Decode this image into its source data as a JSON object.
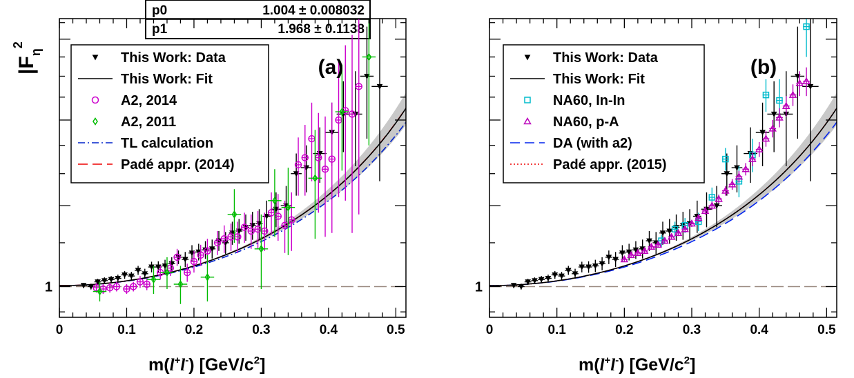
{
  "y_axis_label": {
    "main": "|F",
    "sub": "η",
    "sup": "2"
  },
  "fit_stats": [
    {
      "name": "p0",
      "value": "1.004",
      "pm": "±",
      "err": "0.008032"
    },
    {
      "name": "p1",
      "value": "1.968",
      "pm": "±",
      "err": "0.1138"
    }
  ],
  "x_axis_label": {
    "m": "m(",
    "l1": "l",
    "plus": "+",
    "l2": "l",
    "minus": "-",
    "rest": ")  [GeV/c",
    "two": "2",
    "close": "]"
  },
  "chart_data": [
    {
      "type": "scatter",
      "panel_label": "(a)",
      "xlim": [
        0,
        0.515
      ],
      "ylim": [
        0.88,
        3.05
      ],
      "yscale": "log",
      "xticks": [
        0,
        0.1,
        0.2,
        0.3,
        0.4,
        0.5
      ],
      "xtick_labels": [
        "0",
        "0.1",
        "0.2",
        "0.3",
        "0.4",
        "0.5"
      ],
      "ytick_labels": [
        {
          "value": 1,
          "label": "1"
        }
      ],
      "reference_line": 1,
      "legend_position": "top-left",
      "legend": [
        {
          "label": "This Work: Data",
          "style": "marker-triangle-down",
          "color": "#000000"
        },
        {
          "label": "This Work: Fit",
          "style": "solid",
          "color": "#000000"
        },
        {
          "label": "A2, 2014",
          "style": "marker-circle",
          "color": "#cc00cc"
        },
        {
          "label": "A2, 2011",
          "style": "marker-diamond",
          "color": "#00bb00"
        },
        {
          "label": "TL calculation",
          "style": "dashdot",
          "color": "#0022cc"
        },
        {
          "label": "Padé appr. (2014)",
          "style": "dashed",
          "color": "#ee0000"
        }
      ],
      "fit": {
        "p0": 1.004,
        "p1": 1.968
      },
      "series": [
        {
          "name": "This Work: Data",
          "color": "#000000",
          "marker": "triangle-down",
          "x": [
            0.036,
            0.047,
            0.057,
            0.067,
            0.077,
            0.087,
            0.097,
            0.107,
            0.117,
            0.127,
            0.137,
            0.147,
            0.157,
            0.167,
            0.177,
            0.187,
            0.197,
            0.207,
            0.217,
            0.227,
            0.237,
            0.247,
            0.257,
            0.267,
            0.277,
            0.287,
            0.297,
            0.308,
            0.322,
            0.337,
            0.352,
            0.367,
            0.387,
            0.405,
            0.422,
            0.44,
            0.457,
            0.476
          ],
          "y": [
            1.005,
            1.0,
            1.02,
            1.025,
            1.03,
            1.035,
            1.05,
            1.045,
            1.07,
            1.055,
            1.085,
            1.085,
            1.09,
            1.1,
            1.13,
            1.12,
            1.15,
            1.155,
            1.165,
            1.17,
            1.21,
            1.2,
            1.25,
            1.26,
            1.28,
            1.29,
            1.3,
            1.34,
            1.38,
            1.4,
            1.6,
            1.64,
            1.74,
            1.9,
            2.05,
            2.05,
            2.4,
            2.3
          ],
          "yerr": [
            0.01,
            0.012,
            0.013,
            0.014,
            0.015,
            0.016,
            0.017,
            0.018,
            0.02,
            0.022,
            0.024,
            0.026,
            0.028,
            0.03,
            0.032,
            0.035,
            0.038,
            0.04,
            0.043,
            0.046,
            0.05,
            0.055,
            0.06,
            0.065,
            0.07,
            0.075,
            0.08,
            0.09,
            0.1,
            0.12,
            0.14,
            0.16,
            0.2,
            0.25,
            0.3,
            0.4,
            0.55,
            0.75
          ],
          "xerr": [
            0.005,
            0.005,
            0.005,
            0.005,
            0.005,
            0.005,
            0.005,
            0.005,
            0.005,
            0.005,
            0.005,
            0.005,
            0.005,
            0.005,
            0.005,
            0.005,
            0.005,
            0.005,
            0.005,
            0.005,
            0.005,
            0.005,
            0.005,
            0.005,
            0.005,
            0.005,
            0.005,
            0.006,
            0.008,
            0.008,
            0.008,
            0.008,
            0.01,
            0.01,
            0.01,
            0.01,
            0.01,
            0.012
          ]
        },
        {
          "name": "A2, 2014",
          "color": "#cc00cc",
          "marker": "circle",
          "x": [
            0.055,
            0.065,
            0.075,
            0.085,
            0.1,
            0.11,
            0.12,
            0.13,
            0.15,
            0.165,
            0.175,
            0.19,
            0.2,
            0.21,
            0.22,
            0.235,
            0.245,
            0.255,
            0.265,
            0.275,
            0.285,
            0.295,
            0.305,
            0.315,
            0.325,
            0.335,
            0.345,
            0.355,
            0.365,
            0.375,
            0.385,
            0.395,
            0.405,
            0.415,
            0.425,
            0.435,
            0.445
          ],
          "y": [
            0.995,
            0.99,
            0.995,
            1.0,
            0.99,
            1.0,
            1.02,
            1.01,
            1.06,
            1.08,
            1.13,
            1.06,
            1.11,
            1.14,
            1.16,
            1.2,
            1.22,
            1.23,
            1.23,
            1.28,
            1.26,
            1.27,
            1.26,
            1.36,
            1.34,
            1.29,
            1.32,
            1.66,
            1.71,
            1.85,
            1.71,
            1.63,
            1.7,
            2.0,
            2.08,
            2.05,
            2.3
          ],
          "yerr": [
            0.02,
            0.02,
            0.02,
            0.02,
            0.02,
            0.02,
            0.025,
            0.025,
            0.03,
            0.035,
            0.04,
            0.04,
            0.05,
            0.05,
            0.06,
            0.06,
            0.07,
            0.07,
            0.08,
            0.08,
            0.09,
            0.1,
            0.1,
            0.12,
            0.13,
            0.14,
            0.16,
            0.2,
            0.25,
            0.3,
            0.35,
            0.4,
            0.45,
            0.55,
            0.65,
            0.8,
            0.95
          ],
          "xerr": [
            0.005,
            0.005,
            0.005,
            0.005,
            0.005,
            0.005,
            0.005,
            0.005,
            0.005,
            0.005,
            0.005,
            0.005,
            0.005,
            0.005,
            0.005,
            0.005,
            0.005,
            0.005,
            0.005,
            0.005,
            0.005,
            0.005,
            0.005,
            0.005,
            0.005,
            0.005,
            0.005,
            0.005,
            0.005,
            0.005,
            0.005,
            0.005,
            0.005,
            0.005,
            0.005,
            0.005,
            0.005
          ]
        },
        {
          "name": "A2, 2011",
          "color": "#00bb00",
          "marker": "diamond",
          "x": [
            0.06,
            0.14,
            0.16,
            0.18,
            0.22,
            0.26,
            0.3,
            0.32,
            0.34,
            0.38,
            0.42,
            0.46
          ],
          "y": [
            0.98,
            1.03,
            1.06,
            1.01,
            1.04,
            1.35,
            1.17,
            1.43,
            1.39,
            1.57,
            2.07,
            2.6
          ],
          "yerr": [
            0.04,
            0.06,
            0.07,
            0.08,
            0.1,
            0.15,
            0.18,
            0.2,
            0.25,
            0.35,
            0.45,
            0.8
          ],
          "xerr": [
            0.01,
            0.01,
            0.01,
            0.01,
            0.01,
            0.01,
            0.01,
            0.01,
            0.01,
            0.01,
            0.01,
            0.01
          ]
        }
      ]
    },
    {
      "type": "scatter",
      "panel_label": "(b)",
      "xlim": [
        0,
        0.515
      ],
      "ylim": [
        0.88,
        3.05
      ],
      "yscale": "log",
      "xticks": [
        0,
        0.1,
        0.2,
        0.3,
        0.4,
        0.5
      ],
      "xtick_labels": [
        "0",
        "0.1",
        "0.2",
        "0.3",
        "0.4",
        "0.5"
      ],
      "ytick_labels": [
        {
          "value": 1,
          "label": "1"
        }
      ],
      "reference_line": 1,
      "legend_position": "top-left",
      "legend": [
        {
          "label": "This Work: Data",
          "style": "marker-triangle-down",
          "color": "#000000"
        },
        {
          "label": "This Work: Fit",
          "style": "solid",
          "color": "#000000"
        },
        {
          "label": "NA60, In-In",
          "style": "marker-square",
          "color": "#00bbcc"
        },
        {
          "label": "NA60, p-A",
          "style": "marker-triangle-up",
          "color": "#bb00bb"
        },
        {
          "label": "DA (with a2)",
          "style": "dashed",
          "color": "#0022ee"
        },
        {
          "label": "Padé appr. (2015)",
          "style": "dotted",
          "color": "#ee0000"
        }
      ],
      "fit": {
        "p0": 1.004,
        "p1": 1.968
      },
      "series": [
        {
          "name": "This Work: Data",
          "color": "#000000",
          "marker": "triangle-down",
          "x": [
            0.036,
            0.047,
            0.057,
            0.067,
            0.077,
            0.087,
            0.097,
            0.107,
            0.117,
            0.127,
            0.137,
            0.147,
            0.157,
            0.167,
            0.177,
            0.187,
            0.197,
            0.207,
            0.217,
            0.227,
            0.237,
            0.247,
            0.257,
            0.267,
            0.277,
            0.287,
            0.297,
            0.308,
            0.322,
            0.337,
            0.352,
            0.367,
            0.387,
            0.405,
            0.422,
            0.44,
            0.457,
            0.476
          ],
          "y": [
            1.005,
            1.0,
            1.02,
            1.025,
            1.03,
            1.035,
            1.05,
            1.045,
            1.07,
            1.055,
            1.085,
            1.085,
            1.09,
            1.1,
            1.13,
            1.12,
            1.15,
            1.155,
            1.165,
            1.17,
            1.21,
            1.2,
            1.25,
            1.26,
            1.28,
            1.29,
            1.3,
            1.34,
            1.38,
            1.4,
            1.6,
            1.64,
            1.74,
            1.9,
            2.05,
            2.05,
            2.4,
            2.3
          ],
          "yerr": [
            0.01,
            0.012,
            0.013,
            0.014,
            0.015,
            0.016,
            0.017,
            0.018,
            0.02,
            0.022,
            0.024,
            0.026,
            0.028,
            0.03,
            0.032,
            0.035,
            0.038,
            0.04,
            0.043,
            0.046,
            0.05,
            0.055,
            0.06,
            0.065,
            0.07,
            0.075,
            0.08,
            0.09,
            0.1,
            0.12,
            0.14,
            0.16,
            0.2,
            0.25,
            0.3,
            0.4,
            0.55,
            0.75
          ],
          "xerr": [
            0.005,
            0.005,
            0.005,
            0.005,
            0.005,
            0.005,
            0.005,
            0.005,
            0.005,
            0.005,
            0.005,
            0.005,
            0.005,
            0.005,
            0.005,
            0.005,
            0.005,
            0.005,
            0.005,
            0.005,
            0.005,
            0.005,
            0.005,
            0.005,
            0.005,
            0.005,
            0.005,
            0.006,
            0.008,
            0.008,
            0.008,
            0.008,
            0.01,
            0.01,
            0.01,
            0.01,
            0.01,
            0.012
          ]
        },
        {
          "name": "NA60, In-In",
          "color": "#00bbcc",
          "marker": "square",
          "x": [
            0.255,
            0.275,
            0.29,
            0.31,
            0.33,
            0.35,
            0.37,
            0.39,
            0.41,
            0.43,
            0.47
          ],
          "y": [
            1.21,
            1.27,
            1.29,
            1.31,
            1.45,
            1.7,
            1.55,
            1.73,
            2.22,
            2.17,
            2.95
          ],
          "yerr": [
            0.03,
            0.04,
            0.04,
            0.05,
            0.06,
            0.08,
            0.1,
            0.12,
            0.15,
            0.2,
            0.35
          ],
          "xerr": [
            0.005,
            0.005,
            0.005,
            0.005,
            0.005,
            0.005,
            0.005,
            0.005,
            0.005,
            0.005,
            0.005
          ]
        },
        {
          "name": "NA60, p-A",
          "color": "#bb00bb",
          "marker": "triangle-up",
          "x": [
            0.2,
            0.21,
            0.22,
            0.23,
            0.24,
            0.25,
            0.26,
            0.27,
            0.28,
            0.29,
            0.3,
            0.31,
            0.32,
            0.33,
            0.34,
            0.35,
            0.36,
            0.37,
            0.38,
            0.39,
            0.4,
            0.41,
            0.42,
            0.43,
            0.44,
            0.45,
            0.46,
            0.47
          ],
          "y": [
            1.12,
            1.14,
            1.15,
            1.16,
            1.18,
            1.19,
            1.21,
            1.23,
            1.25,
            1.27,
            1.3,
            1.33,
            1.37,
            1.4,
            1.44,
            1.49,
            1.53,
            1.58,
            1.63,
            1.7,
            1.77,
            1.85,
            1.93,
            2.02,
            2.12,
            2.22,
            2.33,
            2.35
          ],
          "yerr": [
            0.01,
            0.01,
            0.01,
            0.01,
            0.012,
            0.012,
            0.014,
            0.014,
            0.016,
            0.016,
            0.018,
            0.02,
            0.022,
            0.024,
            0.026,
            0.03,
            0.034,
            0.038,
            0.042,
            0.05,
            0.055,
            0.06,
            0.07,
            0.08,
            0.09,
            0.1,
            0.12,
            0.14
          ],
          "xerr": [
            0.005,
            0.005,
            0.005,
            0.005,
            0.005,
            0.005,
            0.005,
            0.005,
            0.005,
            0.005,
            0.005,
            0.005,
            0.005,
            0.005,
            0.005,
            0.005,
            0.005,
            0.005,
            0.005,
            0.005,
            0.005,
            0.005,
            0.005,
            0.005,
            0.005,
            0.005,
            0.005,
            0.005
          ]
        }
      ]
    }
  ]
}
